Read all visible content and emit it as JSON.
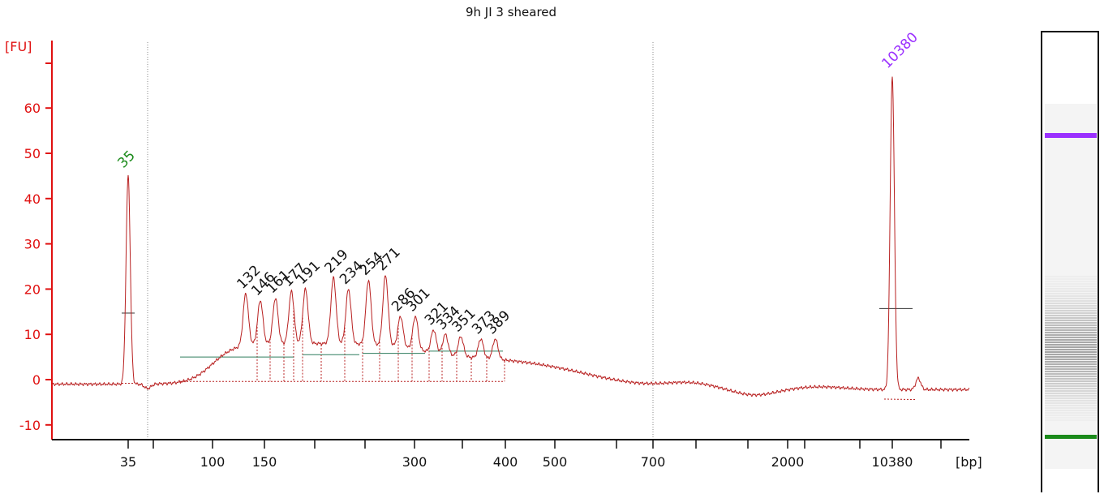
{
  "chart_data": {
    "type": "line",
    "title": "9h JI 3 sheared",
    "ylabel": "[FU]",
    "xlabel": "[bp]",
    "ylim": [
      -12,
      72
    ],
    "yticks": [
      -10,
      0,
      10,
      20,
      30,
      40,
      50,
      60
    ],
    "xticks": [
      "35",
      "100",
      "150",
      "300",
      "400",
      "500",
      "700",
      "2000",
      "10380"
    ],
    "grid": false,
    "colors": {
      "axis": "#e01010",
      "trace": "#b82020",
      "peak_label": "#111111",
      "lower_marker": "#1a8a1a",
      "upper_marker": "#9b30ff",
      "baseline": "#2e7d5e"
    },
    "marker_peaks": [
      {
        "label": "35",
        "size_bp": 35,
        "fu": 45,
        "role": "lower marker"
      },
      {
        "label": "10380",
        "size_bp": 10380,
        "fu": 67,
        "role": "upper marker"
      }
    ],
    "peaks": [
      {
        "label": "132",
        "size_bp": 132,
        "fu": 19
      },
      {
        "label": "146",
        "size_bp": 146,
        "fu": 17.5
      },
      {
        "label": "161",
        "size_bp": 161,
        "fu": 18
      },
      {
        "label": "177",
        "size_bp": 177,
        "fu": 19.5
      },
      {
        "label": "191",
        "size_bp": 191,
        "fu": 20
      },
      {
        "label": "219",
        "size_bp": 219,
        "fu": 22.5
      },
      {
        "label": "234",
        "size_bp": 234,
        "fu": 20
      },
      {
        "label": "254",
        "size_bp": 254,
        "fu": 22
      },
      {
        "label": "271",
        "size_bp": 271,
        "fu": 23
      },
      {
        "label": "286",
        "size_bp": 286,
        "fu": 14
      },
      {
        "label": "301",
        "size_bp": 301,
        "fu": 14
      },
      {
        "label": "321",
        "size_bp": 321,
        "fu": 11
      },
      {
        "label": "334",
        "size_bp": 334,
        "fu": 10
      },
      {
        "label": "351",
        "size_bp": 351,
        "fu": 9.5
      },
      {
        "label": "373",
        "size_bp": 373,
        "fu": 9
      },
      {
        "label": "389",
        "size_bp": 389,
        "fu": 9
      }
    ]
  }
}
